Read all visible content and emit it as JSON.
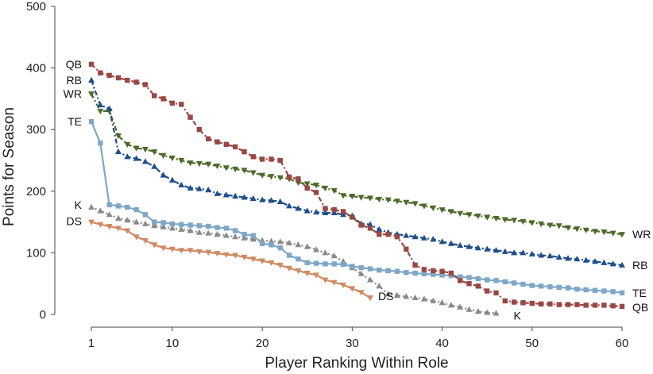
{
  "chart_data": {
    "type": "line",
    "xlabel": "Player Ranking Within Role",
    "ylabel": "Points for Season",
    "xlim": [
      1,
      60
    ],
    "ylim": [
      0,
      500
    ],
    "xticks": [
      1,
      10,
      20,
      30,
      40,
      50,
      60
    ],
    "yticks": [
      0,
      100,
      200,
      300,
      400,
      500
    ],
    "grid": false,
    "legend": "none (series labelled at line ends)",
    "series": [
      {
        "name": "QB",
        "color": "#984844",
        "marker": "square",
        "dash": "6,3,2,3",
        "start_label": "QB",
        "end_label": "QB",
        "values": [
          406,
          392,
          388,
          384,
          380,
          377,
          373,
          355,
          350,
          343,
          341,
          320,
          300,
          285,
          280,
          276,
          272,
          264,
          256,
          252,
          252,
          250,
          223,
          220,
          205,
          198,
          172,
          170,
          167,
          158,
          145,
          140,
          130,
          130,
          126,
          106,
          80,
          73,
          71,
          70,
          67,
          55,
          50,
          46,
          38,
          35,
          22,
          20,
          19,
          18,
          17,
          17,
          16,
          16,
          16,
          15,
          15,
          15,
          14,
          13
        ]
      },
      {
        "name": "RB",
        "color": "#1f4e8c",
        "marker": "triangle-up",
        "dash": "6,3,2,3",
        "start_label": "RB",
        "end_label": "RB",
        "values": [
          380,
          340,
          334,
          264,
          256,
          253,
          248,
          240,
          226,
          218,
          210,
          205,
          204,
          202,
          196,
          194,
          192,
          190,
          188,
          186,
          185,
          183,
          176,
          172,
          168,
          166,
          165,
          165,
          162,
          160,
          147,
          146,
          138,
          133,
          130,
          128,
          126,
          124,
          122,
          118,
          115,
          112,
          110,
          108,
          106,
          104,
          102,
          100,
          100,
          98,
          96,
          95,
          93,
          91,
          90,
          88,
          86,
          84,
          82,
          80
        ]
      },
      {
        "name": "WR",
        "color": "#4d6a2a",
        "marker": "triangle-down",
        "dash": "6,3,2,3",
        "start_label": "WR",
        "end_label": "WR",
        "values": [
          358,
          330,
          330,
          290,
          276,
          270,
          268,
          264,
          258,
          254,
          250,
          246,
          245,
          244,
          241,
          238,
          236,
          234,
          230,
          226,
          224,
          222,
          220,
          214,
          212,
          210,
          205,
          201,
          193,
          192,
          190,
          189,
          187,
          186,
          184,
          182,
          180,
          176,
          173,
          170,
          167,
          164,
          162,
          160,
          158,
          156,
          154,
          153,
          151,
          149,
          147,
          145,
          144,
          141,
          139,
          137,
          135,
          134,
          132,
          130
        ]
      },
      {
        "name": "TE",
        "color": "#7ea7c7",
        "marker": "square",
        "dash": "",
        "start_label": "TE",
        "end_label": "TE",
        "values": [
          313,
          278,
          178,
          176,
          174,
          170,
          162,
          150,
          149,
          147,
          146,
          145,
          144,
          143,
          141,
          140,
          136,
          130,
          128,
          115,
          113,
          108,
          96,
          90,
          84,
          83,
          82,
          82,
          81,
          78,
          76,
          74,
          72,
          71,
          70,
          68,
          67,
          66,
          65,
          64,
          63,
          61,
          60,
          58,
          56,
          55,
          53,
          51,
          49,
          47,
          46,
          45,
          44,
          43,
          41,
          40,
          39,
          38,
          37,
          35
        ]
      },
      {
        "name": "K",
        "color": "#8a8a8a",
        "marker": "triangle-up",
        "dash": "2,3",
        "start_label": "K",
        "end_label": "K",
        "values": [
          174,
          168,
          162,
          156,
          153,
          150,
          147,
          144,
          142,
          140,
          138,
          136,
          133,
          132,
          130,
          128,
          126,
          124,
          122,
          120,
          119,
          118,
          116,
          113,
          110,
          105,
          100,
          95,
          86,
          76,
          66,
          56,
          46,
          33,
          31,
          29,
          27,
          25,
          22,
          19,
          15,
          12,
          8,
          5,
          3,
          2
        ]
      },
      {
        "name": "DS",
        "color": "#cf8a62",
        "marker": "triangle-down",
        "dash": "",
        "start_label": "DS",
        "end_label": "DS",
        "values": [
          150,
          146,
          143,
          140,
          136,
          126,
          120,
          113,
          108,
          106,
          104,
          104,
          102,
          101,
          99,
          97,
          96,
          93,
          90,
          87,
          84,
          80,
          75,
          71,
          67,
          64,
          56,
          52,
          48,
          42,
          36,
          27
        ]
      }
    ]
  }
}
